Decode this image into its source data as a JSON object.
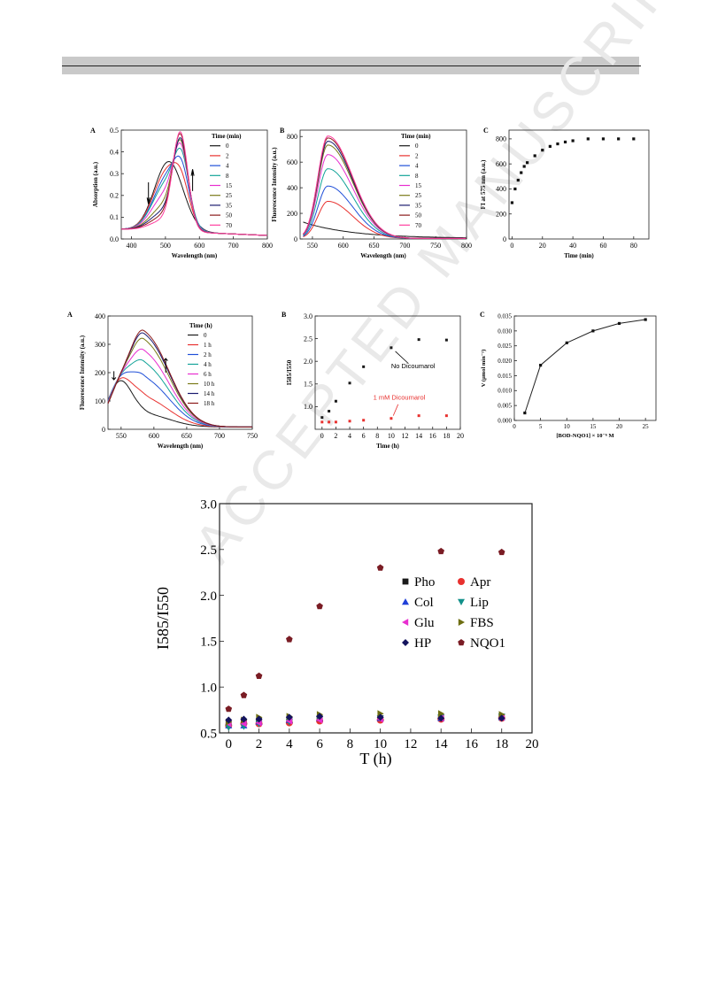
{
  "watermark_text": "ACCEPTED MANUSCRIPT",
  "colors": {
    "black": "#1a1a1a",
    "red": "#e8312f",
    "blue": "#1f4fd8",
    "teal": "#12a398",
    "green": "#5e9a2e",
    "magenta": "#e82fd0",
    "pink": "#ff6fb1",
    "olive": "#7a7a18",
    "navy": "#1b1b6f",
    "darkred": "#8b1a1a",
    "maroon": "#7a1c24",
    "gray": "#808080"
  },
  "chart_data": [
    {
      "id": "p1a",
      "panel_label": "A",
      "type": "line",
      "xlabel": "Wavelength (nm)",
      "ylabel": "Absorption (a.u.)",
      "xlim": [
        370,
        800
      ],
      "ylim": [
        0,
        0.5
      ],
      "xticks": [
        "400",
        "500",
        "600",
        "700",
        "800"
      ],
      "xtick_values": [
        400,
        500,
        600,
        700,
        800
      ],
      "yticks": [
        "0.0",
        "0.1",
        "0.2",
        "0.3",
        "0.4",
        "0.5"
      ],
      "ytick_values": [
        0,
        0.1,
        0.2,
        0.3,
        0.4,
        0.5
      ],
      "legend_title": "Time (min)",
      "legend_labels": [
        "0",
        "2",
        "4",
        "8",
        "15",
        "25",
        "35",
        "50",
        "70"
      ],
      "series": [
        {
          "name": "0",
          "color": "#1a1a1a",
          "peaks": [
            [
              510,
              0.32,
              42
            ]
          ],
          "base": 0.04
        },
        {
          "name": "2",
          "color": "#e8312f",
          "peaks": [
            [
              508,
              0.28,
              42
            ],
            [
              548,
              0.1,
              22
            ]
          ],
          "base": 0.04
        },
        {
          "name": "4",
          "color": "#1f4fd8",
          "peaks": [
            [
              508,
              0.25,
              42
            ],
            [
              548,
              0.17,
              22
            ]
          ],
          "base": 0.04
        },
        {
          "name": "8",
          "color": "#12a398",
          "peaks": [
            [
              506,
              0.22,
              42
            ],
            [
              548,
              0.24,
              22
            ]
          ],
          "base": 0.04
        },
        {
          "name": "15",
          "color": "#e82fd0",
          "peaks": [
            [
              504,
              0.17,
              42
            ],
            [
              546,
              0.3,
              22
            ]
          ],
          "base": 0.04
        },
        {
          "name": "25",
          "color": "#7a7a18",
          "peaks": [
            [
              502,
              0.12,
              42
            ],
            [
              545,
              0.35,
              22
            ]
          ],
          "base": 0.04
        },
        {
          "name": "35",
          "color": "#1b1b6f",
          "peaks": [
            [
              500,
              0.09,
              42
            ],
            [
              545,
              0.38,
              22
            ]
          ],
          "base": 0.04
        },
        {
          "name": "50",
          "color": "#8b1a1a",
          "peaks": [
            [
              500,
              0.07,
              42
            ],
            [
              544,
              0.41,
              22
            ]
          ],
          "base": 0.04
        },
        {
          "name": "70",
          "color": "#ff3fa0",
          "peaks": [
            [
              500,
              0.05,
              42
            ],
            [
              544,
              0.43,
              22
            ]
          ],
          "base": 0.04
        }
      ]
    },
    {
      "id": "p1b",
      "panel_label": "B",
      "type": "line",
      "xlabel": "Wavelength (nm)",
      "ylabel": "Fluorescence Intensity (a.u.)",
      "xlim": [
        530,
        800
      ],
      "ylim": [
        0,
        850
      ],
      "xticks": [
        "550",
        "600",
        "650",
        "700",
        "750",
        "800"
      ],
      "xtick_values": [
        550,
        600,
        650,
        700,
        750,
        800
      ],
      "yticks": [
        "0",
        "200",
        "400",
        "600",
        "800"
      ],
      "ytick_values": [
        0,
        200,
        400,
        600,
        800
      ],
      "legend_title": "Time (min)",
      "legend_labels": [
        "0",
        "2",
        "4",
        "8",
        "15",
        "25",
        "35",
        "50",
        "70"
      ],
      "series": [
        {
          "name": "0",
          "color": "#1a1a1a",
          "peak_x": 550,
          "peak_y": 110
        },
        {
          "name": "2",
          "color": "#e8312f",
          "peak_x": 575,
          "peak_y": 290
        },
        {
          "name": "4",
          "color": "#1f4fd8",
          "peak_x": 575,
          "peak_y": 410
        },
        {
          "name": "8",
          "color": "#12a398",
          "peak_x": 575,
          "peak_y": 545
        },
        {
          "name": "15",
          "color": "#e82fd0",
          "peak_x": 575,
          "peak_y": 655
        },
        {
          "name": "25",
          "color": "#7a7a18",
          "peak_x": 575,
          "peak_y": 730
        },
        {
          "name": "35",
          "color": "#1b1b6f",
          "peak_x": 575,
          "peak_y": 760
        },
        {
          "name": "50",
          "color": "#8b1a1a",
          "peak_x": 575,
          "peak_y": 785
        },
        {
          "name": "70",
          "color": "#ff3fa0",
          "peak_x": 575,
          "peak_y": 800
        }
      ]
    },
    {
      "id": "p1c",
      "panel_label": "C",
      "type": "scatter",
      "xlabel": "Time (min)",
      "ylabel": "FI at 575 nm (a.u.)",
      "xlim": [
        -2,
        90
      ],
      "ylim": [
        0,
        870
      ],
      "xticks": [
        "0",
        "20",
        "40",
        "60",
        "80"
      ],
      "xtick_values": [
        0,
        20,
        40,
        60,
        80
      ],
      "yticks": [
        "0",
        "200",
        "400",
        "600",
        "800"
      ],
      "ytick_values": [
        0,
        200,
        400,
        600,
        800
      ],
      "x": [
        0,
        2,
        4,
        6,
        8,
        10,
        15,
        20,
        25,
        30,
        35,
        40,
        50,
        60,
        70,
        80
      ],
      "y": [
        290,
        400,
        470,
        530,
        580,
        610,
        665,
        710,
        740,
        760,
        775,
        785,
        800,
        800,
        800,
        800
      ]
    },
    {
      "id": "p2a",
      "panel_label": "A",
      "type": "line",
      "xlabel": "Wavelength (nm)",
      "ylabel": "Fluorescence Intensity (a.u.)",
      "xlim": [
        530,
        750
      ],
      "ylim": [
        0,
        400
      ],
      "xticks": [
        "550",
        "600",
        "650",
        "700",
        "750"
      ],
      "xtick_values": [
        550,
        600,
        650,
        700,
        750
      ],
      "yticks": [
        "0",
        "100",
        "200",
        "300",
        "400"
      ],
      "ytick_values": [
        0,
        100,
        200,
        300,
        400
      ],
      "legend_title": "Time (h)",
      "legend_labels": [
        "0",
        "1 h",
        "2 h",
        "4 h",
        "6 h",
        "10 h",
        "14 h",
        "18 h"
      ],
      "series": [
        {
          "name": "0",
          "color": "#1a1a1a",
          "p1": 155,
          "p2": 45
        },
        {
          "name": "1 h",
          "color": "#e8312f",
          "p1": 152,
          "p2": 100
        },
        {
          "name": "2 h",
          "color": "#1f4fd8",
          "p1": 148,
          "p2": 165
        },
        {
          "name": "4 h",
          "color": "#12a398",
          "p1": 142,
          "p2": 215
        },
        {
          "name": "6 h",
          "color": "#e82fd0",
          "p1": 136,
          "p2": 255
        },
        {
          "name": "10 h",
          "color": "#7a7a18",
          "p1": 130,
          "p2": 295
        },
        {
          "name": "14 h",
          "color": "#1b1b6f",
          "p1": 126,
          "p2": 315
        },
        {
          "name": "18 h",
          "color": "#8b1a1a",
          "p1": 124,
          "p2": 325
        }
      ]
    },
    {
      "id": "p2b",
      "panel_label": "B",
      "type": "scatter",
      "xlabel": "Time (h)",
      "ylabel": "I585/I550",
      "xlim": [
        -1,
        20
      ],
      "ylim": [
        0.5,
        3.0
      ],
      "xticks": [
        "0",
        "2",
        "4",
        "6",
        "8",
        "10",
        "12",
        "14",
        "16",
        "18",
        "20"
      ],
      "xtick_values": [
        0,
        2,
        4,
        6,
        8,
        10,
        12,
        14,
        16,
        18,
        20
      ],
      "yticks": [
        "1.0",
        "1.5",
        "2.0",
        "2.5",
        "3.0"
      ],
      "ytick_values": [
        1.0,
        1.5,
        2.0,
        2.5,
        3.0
      ],
      "annotations": [
        "No Dicoumarol",
        "1 mM Dicoumarol"
      ],
      "series": [
        {
          "name": "No Dicoumarol",
          "color": "#1a1a1a",
          "x": [
            0,
            1,
            2,
            4,
            6,
            10,
            14,
            18
          ],
          "y": [
            0.76,
            0.9,
            1.12,
            1.52,
            1.88,
            2.3,
            2.48,
            2.47
          ]
        },
        {
          "name": "1 mM Dicoumarol",
          "color": "#e8312f",
          "x": [
            0,
            1,
            2,
            4,
            6,
            10,
            14,
            18
          ],
          "y": [
            0.66,
            0.66,
            0.66,
            0.68,
            0.7,
            0.74,
            0.8,
            0.8
          ]
        }
      ]
    },
    {
      "id": "p2c",
      "panel_label": "C",
      "type": "line",
      "xlabel": "[BOD-NQO1] × 10⁻⁶ M",
      "ylabel": "V (μmol min⁻¹)",
      "xlim": [
        0,
        27
      ],
      "ylim": [
        0,
        0.035
      ],
      "xticks": [
        "0",
        "5",
        "10",
        "15",
        "20",
        "25"
      ],
      "xtick_values": [
        0,
        5,
        10,
        15,
        20,
        25
      ],
      "yticks": [
        "0.000",
        "0.005",
        "0.010",
        "0.015",
        "0.020",
        "0.025",
        "0.030",
        "0.035"
      ],
      "ytick_values": [
        0,
        0.005,
        0.01,
        0.015,
        0.02,
        0.025,
        0.03,
        0.035
      ],
      "x": [
        2,
        5,
        10,
        15,
        20,
        25
      ],
      "y": [
        0.0025,
        0.0185,
        0.026,
        0.03,
        0.0325,
        0.0338
      ]
    },
    {
      "id": "p3",
      "type": "scatter",
      "xlabel": "T (h)",
      "ylabel": "I585/I550",
      "xlim": [
        -0.6,
        20
      ],
      "ylim": [
        0.5,
        3.0
      ],
      "xticks": [
        "0",
        "2",
        "4",
        "6",
        "8",
        "10",
        "12",
        "14",
        "16",
        "18",
        "20"
      ],
      "xtick_values": [
        0,
        2,
        4,
        6,
        8,
        10,
        12,
        14,
        16,
        18,
        20
      ],
      "yticks": [
        "0.5",
        "1.0",
        "1.5",
        "2.0",
        "2.5",
        "3.0"
      ],
      "ytick_values": [
        0.5,
        1.0,
        1.5,
        2.0,
        2.5,
        3.0
      ],
      "legend": "upper-center",
      "series": [
        {
          "name": "Pho",
          "marker": "square",
          "color": "#1a1a1a",
          "x": [
            0,
            1,
            2,
            4,
            6,
            10,
            14,
            18
          ],
          "y": [
            0.6,
            0.62,
            0.63,
            0.65,
            0.66,
            0.66,
            0.67,
            0.67
          ]
        },
        {
          "name": "Apr",
          "marker": "circle",
          "color": "#e8312f",
          "x": [
            0,
            1,
            2,
            4,
            6,
            10,
            14,
            18
          ],
          "y": [
            0.58,
            0.6,
            0.6,
            0.61,
            0.63,
            0.64,
            0.65,
            0.66
          ]
        },
        {
          "name": "Col",
          "marker": "triangle-up",
          "color": "#1f3fd8",
          "x": [
            0,
            1,
            2,
            4,
            6,
            10,
            14,
            18
          ],
          "y": [
            0.58,
            0.58,
            0.62,
            0.64,
            0.66,
            0.66,
            0.66,
            0.67
          ]
        },
        {
          "name": "Lip",
          "marker": "triangle-down",
          "color": "#12908a",
          "x": [
            0,
            1,
            2,
            4,
            6,
            10,
            14,
            18
          ],
          "y": [
            0.56,
            0.57,
            0.6,
            0.62,
            0.65,
            0.66,
            0.67,
            0.68
          ]
        },
        {
          "name": "Glu",
          "marker": "triangle-left",
          "color": "#e82fd0",
          "x": [
            0,
            1,
            2,
            4,
            6,
            10,
            14,
            18
          ],
          "y": [
            0.6,
            0.6,
            0.61,
            0.63,
            0.64,
            0.65,
            0.66,
            0.67
          ]
        },
        {
          "name": "FBS",
          "marker": "triangle-right",
          "color": "#6e6e12",
          "x": [
            0,
            1,
            2,
            4,
            6,
            10,
            14,
            18
          ],
          "y": [
            0.62,
            0.64,
            0.67,
            0.68,
            0.7,
            0.71,
            0.71,
            0.7
          ]
        },
        {
          "name": "HP",
          "marker": "diamond",
          "color": "#14145e",
          "x": [
            0,
            1,
            2,
            4,
            6,
            10,
            14,
            18
          ],
          "y": [
            0.64,
            0.65,
            0.65,
            0.67,
            0.68,
            0.67,
            0.66,
            0.66
          ]
        },
        {
          "name": "NQO1",
          "marker": "pentagon",
          "color": "#7a1c24",
          "x": [
            0,
            1,
            2,
            4,
            6,
            10,
            14,
            18
          ],
          "y": [
            0.76,
            0.91,
            1.12,
            1.52,
            1.88,
            2.3,
            2.48,
            2.47
          ]
        }
      ]
    }
  ]
}
